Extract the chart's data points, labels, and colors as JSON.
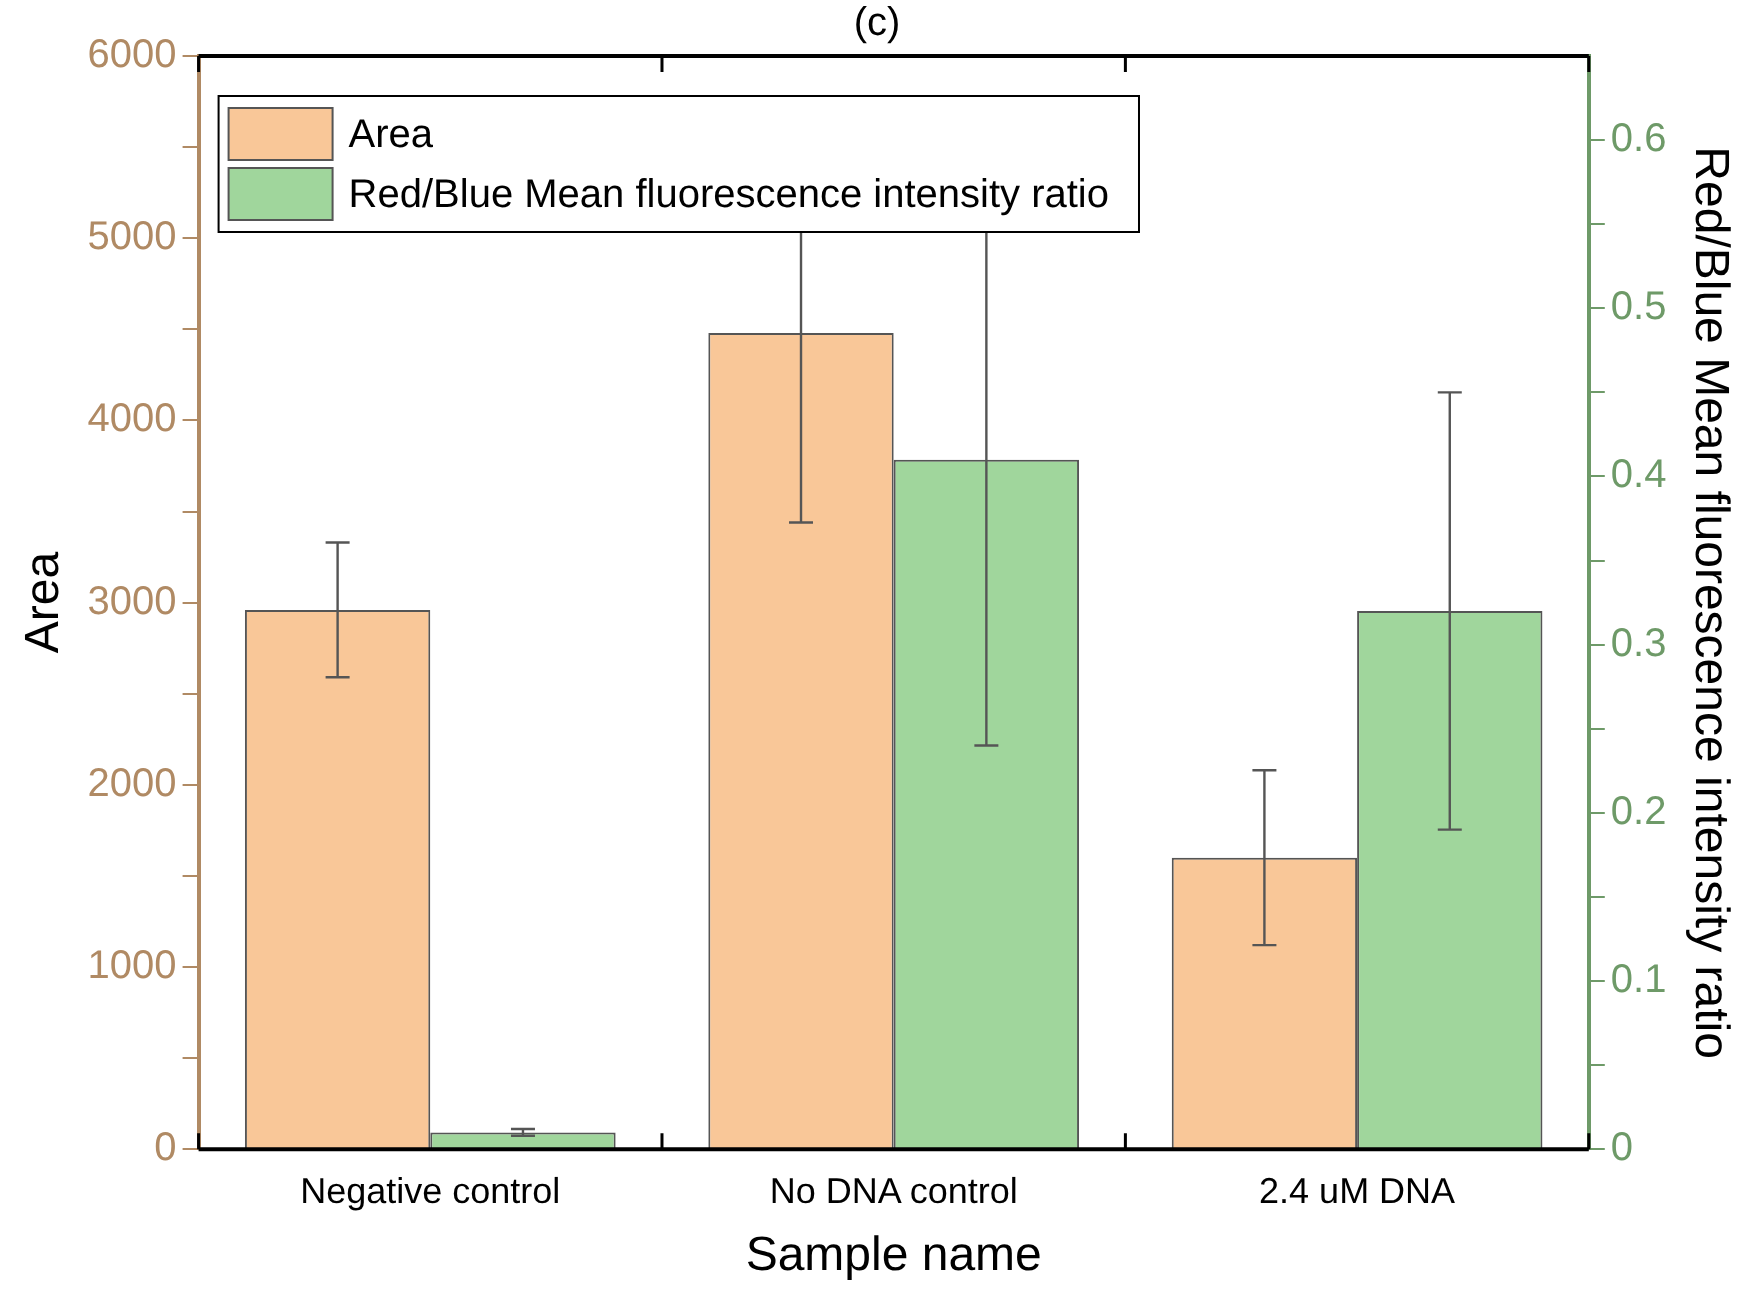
{
  "chart_data": {
    "type": "bar",
    "title": "(c)",
    "xlabel": "Sample name",
    "ylabel": "Area",
    "y2label": "Red/Blue Mean fluorescence intensity ratio",
    "categories": [
      "Negative control",
      "No DNA control",
      "2.4 uM DNA"
    ],
    "series": [
      {
        "name": "Area",
        "color": "#f9c798",
        "values": [
          2960,
          4480,
          1600
        ],
        "errors": [
          370,
          1040,
          480
        ]
      },
      {
        "name": "Red/Blue Mean fluorescence intensity ratio",
        "color": "#a0d69c",
        "axis": "y2",
        "values": [
          0.01,
          0.41,
          0.32
        ],
        "errors": [
          0.002,
          0.17,
          0.13
        ]
      }
    ],
    "ylim": [
      0,
      6000
    ],
    "yticks": [
      0,
      {
        "value": 500,
        "label": null
      },
      1000,
      {
        "value": 1500,
        "label": null
      },
      2000,
      {
        "value": 2500,
        "label": null
      },
      3000,
      {
        "value": 3500,
        "label": null
      },
      4000,
      {
        "value": 4500,
        "label": null
      },
      5000,
      {
        "value": 5500,
        "label": null
      },
      6000
    ],
    "y2lim": [
      0,
      0.65
    ],
    "y2ticks": [
      0,
      {
        "value": 0.05,
        "label": null
      },
      0.1,
      {
        "value": 0.15,
        "label": null
      },
      0.2,
      {
        "value": 0.25,
        "label": null
      },
      0.3,
      {
        "value": 0.35,
        "label": null
      },
      0.4,
      {
        "value": 0.45,
        "label": null
      },
      0.5,
      {
        "value": 0.55,
        "label": null
      },
      0.6
    ],
    "legend": "top left",
    "grid": false
  }
}
